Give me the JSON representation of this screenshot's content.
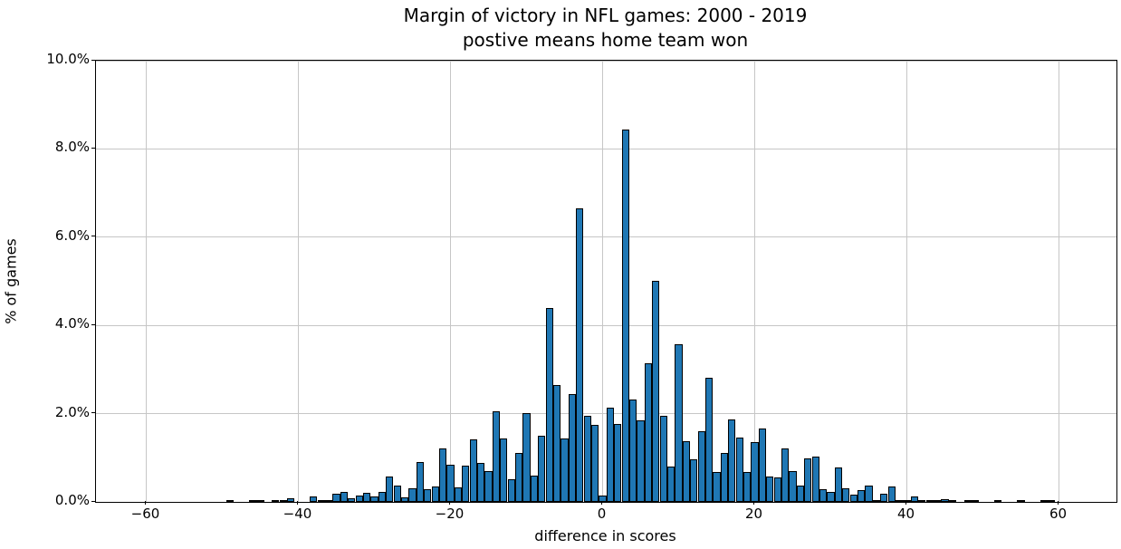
{
  "title": {
    "line1": "Margin of victory in NFL games: 2000 - 2019",
    "line2": "postive means home team won"
  },
  "x_axis": {
    "label": "difference in scores",
    "tick_labels": [
      "−60",
      "−40",
      "−20",
      "0",
      "20",
      "40",
      "60"
    ],
    "tick_values": [
      -60,
      -40,
      -20,
      0,
      20,
      40,
      60
    ]
  },
  "y_axis": {
    "label": "% of games",
    "tick_labels": [
      "0.0%",
      "2.0%",
      "4.0%",
      "6.0%",
      "8.0%",
      "10.0%"
    ],
    "tick_values": [
      0,
      2,
      4,
      6,
      8,
      10
    ]
  },
  "colors": {
    "bar_fill": "#1f77b4",
    "bar_edge": "#000000",
    "grid": "#c6c6c6",
    "spine": "#000000",
    "background": "#ffffff"
  },
  "chart_data": {
    "type": "bar",
    "subtype": "histogram",
    "title": "Margin of victory in NFL games: 2000 - 2019\npostive means home team won",
    "xlabel": "difference in scores",
    "ylabel": "% of games",
    "xlim": [
      -66.5,
      67.5
    ],
    "ylim": [
      0,
      10
    ],
    "grid": true,
    "bin_width": 1,
    "x": [
      -49,
      -48,
      -47,
      -46,
      -45,
      -44,
      -43,
      -42,
      -41,
      -40,
      -39,
      -38,
      -37,
      -36,
      -35,
      -34,
      -33,
      -32,
      -31,
      -30,
      -29,
      -28,
      -27,
      -26,
      -25,
      -24,
      -23,
      -22,
      -21,
      -20,
      -19,
      -18,
      -17,
      -16,
      -15,
      -14,
      -13,
      -12,
      -11,
      -10,
      -9,
      -8,
      -7,
      -6,
      -5,
      -4,
      -3,
      -2,
      -1,
      0,
      1,
      2,
      3,
      4,
      5,
      6,
      7,
      8,
      9,
      10,
      11,
      12,
      13,
      14,
      15,
      16,
      17,
      18,
      19,
      20,
      21,
      22,
      23,
      24,
      25,
      26,
      27,
      28,
      29,
      30,
      31,
      32,
      33,
      34,
      35,
      36,
      37,
      38,
      39,
      40,
      41,
      42,
      43,
      44,
      45,
      46,
      47,
      48,
      49,
      50,
      51,
      52,
      53,
      54,
      55,
      56,
      57,
      58,
      59
    ],
    "values_pct": [
      0.04,
      0,
      0,
      0.04,
      0.03,
      0,
      0.03,
      0.03,
      0.09,
      0,
      0,
      0.13,
      0.04,
      0.02,
      0.19,
      0.22,
      0.09,
      0.15,
      0.2,
      0.13,
      0.22,
      0.58,
      0.38,
      0.11,
      0.31,
      0.91,
      0.29,
      0.34,
      1.22,
      0.84,
      0.33,
      0.82,
      1.41,
      0.89,
      0.69,
      2.05,
      1.43,
      0.52,
      1.1,
      2.02,
      0.6,
      1.5,
      4.4,
      2.64,
      1.43,
      2.45,
      6.65,
      1.96,
      1.74,
      0.14,
      2.13,
      1.77,
      8.45,
      2.32,
      1.84,
      3.14,
      5.02,
      1.96,
      0.81,
      3.57,
      1.38,
      0.97,
      1.61,
      2.81,
      0.67,
      1.1,
      1.87,
      1.46,
      0.67,
      1.36,
      1.67,
      0.57,
      0.55,
      1.21,
      0.69,
      0.38,
      0.99,
      1.03,
      0.29,
      0.22,
      0.79,
      0.31,
      0.17,
      0.27,
      0.36,
      0.05,
      0.18,
      0.34,
      0.02,
      0.05,
      0.12,
      0.05,
      0.03,
      0.04,
      0.06,
      0.04,
      0,
      0.04,
      0.04,
      0,
      0,
      0.02,
      0,
      0,
      0.02,
      0,
      0,
      0.02,
      0.02
    ]
  }
}
